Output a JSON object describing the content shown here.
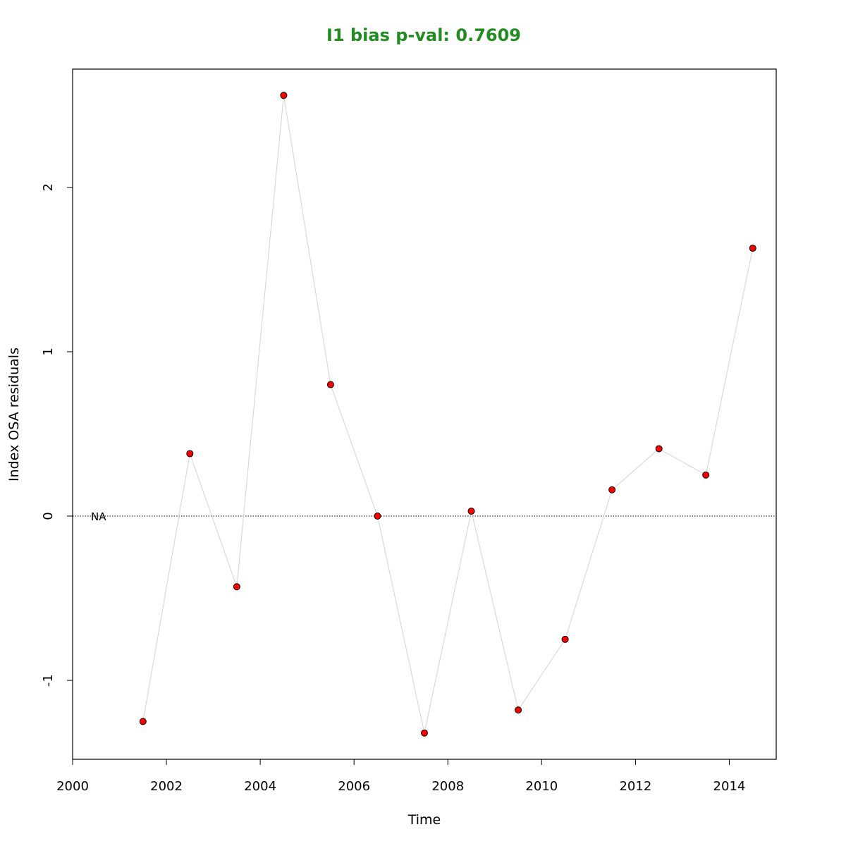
{
  "chart_data": {
    "type": "scatter",
    "title": "I1 bias p-val: 0.7609",
    "title_color": "#228B22",
    "xlabel": "Time",
    "ylabel": "Index OSA residuals",
    "xlim": [
      2000,
      2015
    ],
    "ylim": [
      -1.48,
      2.72
    ],
    "x_ticks": [
      2000,
      2002,
      2004,
      2006,
      2008,
      2010,
      2012,
      2014
    ],
    "y_ticks": [
      -1,
      0,
      1,
      2
    ],
    "reference_line": {
      "y": 0,
      "style": "dotted",
      "label": "NA"
    },
    "line_color": "#d3d3d3",
    "point_fill": "#ff0000",
    "point_stroke": "#000000",
    "grid": false,
    "series": [
      {
        "x": [
          2001.5,
          2002.5,
          2003.5,
          2004.5,
          2005.5,
          2006.5,
          2007.5,
          2008.5,
          2009.5,
          2010.5,
          2011.5,
          2012.5,
          2013.5,
          2014.5
        ],
        "values": [
          -1.25,
          0.38,
          -0.43,
          2.56,
          0.8,
          0.0,
          -1.32,
          0.03,
          -1.18,
          -0.75,
          0.16,
          0.41,
          0.25,
          1.63
        ]
      }
    ]
  }
}
